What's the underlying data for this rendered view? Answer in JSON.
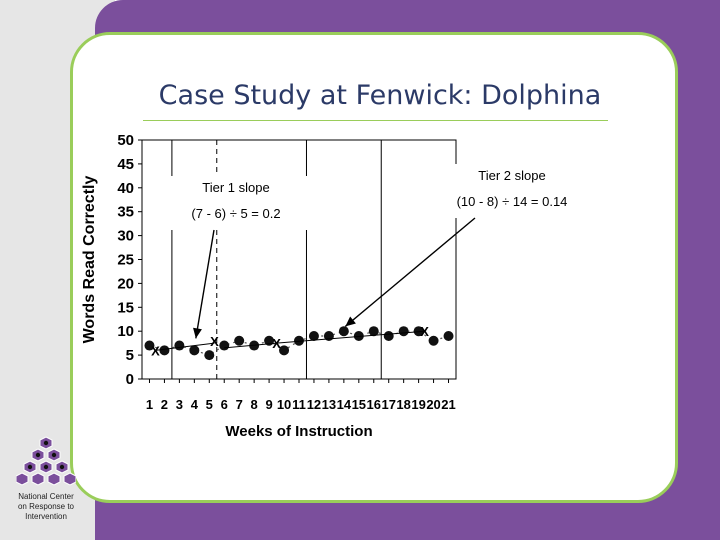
{
  "slide": {
    "title": "Case Study at Fenwick: Dolphina",
    "logo_text": [
      "National Center",
      "on Response to",
      "Intervention"
    ]
  },
  "chart_data": {
    "type": "line",
    "title": "",
    "xlabel": "Weeks of Instruction",
    "ylabel": "Words Read Correctly",
    "xlim": [
      0.5,
      21.5
    ],
    "ylim": [
      0,
      50
    ],
    "x_ticks": [
      1,
      2,
      3,
      4,
      5,
      6,
      7,
      8,
      9,
      10,
      11,
      12,
      13,
      14,
      15,
      16,
      17,
      18,
      19,
      20,
      21
    ],
    "y_ticks": [
      0,
      5,
      10,
      15,
      20,
      25,
      30,
      35,
      40,
      45,
      50
    ],
    "grid": false,
    "series": [
      {
        "points": [
          {
            "x": 1,
            "y": 7
          },
          {
            "x": 2,
            "y": 6
          },
          {
            "x": 3,
            "y": 7
          },
          {
            "x": 4,
            "y": 6
          },
          {
            "x": 5,
            "y": 5
          },
          {
            "x": 6,
            "y": 7
          },
          {
            "x": 7,
            "y": 8
          },
          {
            "x": 8,
            "y": 7
          },
          {
            "x": 9,
            "y": 8
          },
          {
            "x": 10,
            "y": 6
          },
          {
            "x": 11,
            "y": 8
          },
          {
            "x": 12,
            "y": 9
          },
          {
            "x": 13,
            "y": 9
          },
          {
            "x": 14,
            "y": 10
          },
          {
            "x": 15,
            "y": 9
          },
          {
            "x": 16,
            "y": 10
          },
          {
            "x": 17,
            "y": 9
          },
          {
            "x": 18,
            "y": 10
          },
          {
            "x": 19,
            "y": 10
          },
          {
            "x": 20,
            "y": 8
          },
          {
            "x": 21,
            "y": 9
          }
        ],
        "color": "#111111",
        "line_style": "dotted"
      }
    ],
    "phase_lines": [
      {
        "x": 2.5,
        "style": "solid"
      },
      {
        "x": 5.5,
        "style": "dashed"
      },
      {
        "x": 11.5,
        "style": "solid"
      },
      {
        "x": 16.5,
        "style": "solid"
      }
    ],
    "x_markers": [
      {
        "x": 1.4,
        "y": 6,
        "label": "X"
      },
      {
        "x": 5.35,
        "y": 8,
        "label": "X"
      },
      {
        "x": 9.5,
        "y": 7.5,
        "label": "X"
      },
      {
        "x": 19.4,
        "y": 10,
        "label": "X"
      }
    ],
    "trend_lines": [
      {
        "from": [
          1.4,
          6
        ],
        "to": [
          5.35,
          7.5
        ]
      },
      {
        "from": [
          6,
          6.5
        ],
        "to": [
          9.5,
          7.5
        ]
      },
      {
        "from": [
          9.5,
          7.5
        ],
        "to": [
          19.4,
          10
        ]
      }
    ],
    "annotations": [
      {
        "line1": "Tier 1 slope",
        "line2": "(7 - 6) ÷ 5 = 0.2",
        "arrow_to": [
          4.1,
          8.5
        ]
      },
      {
        "line1": "Tier 2 slope",
        "line2": "(10 - 8) ÷ 14 = 0.14",
        "arrow_to": [
          14.1,
          11
        ]
      }
    ]
  }
}
